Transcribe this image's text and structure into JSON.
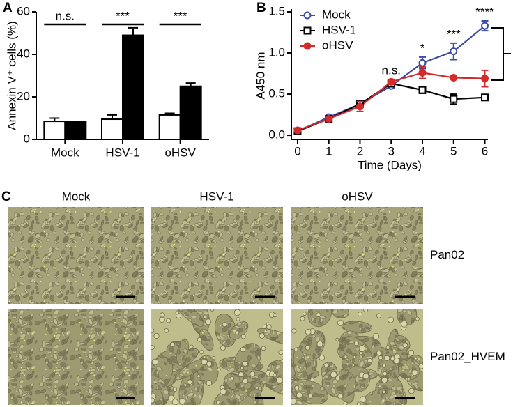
{
  "chart_data": [
    {
      "type": "bar",
      "panel": "A",
      "ylabel": "Annexin V⁺ cells (%)",
      "categories": [
        "Mock",
        "HSV-1",
        "oHSV"
      ],
      "series": [
        {
          "color": "#ffffff",
          "values": [
            8.5,
            9.5,
            11.5
          ],
          "errors": [
            1.5,
            2,
            0.8
          ]
        },
        {
          "color": "#000000",
          "values": [
            8.2,
            49,
            25
          ],
          "errors": [
            0.3,
            3.5,
            1.5
          ]
        }
      ],
      "significance": [
        "n.s.",
        "***",
        "***"
      ],
      "ylim": [
        0,
        60
      ],
      "yticks": [
        0,
        20,
        40,
        60
      ]
    },
    {
      "type": "line",
      "panel": "B",
      "xlabel": "Time (Days)",
      "ylabel": "A450 nm",
      "x": [
        0,
        1,
        2,
        3,
        4,
        5,
        6
      ],
      "series": [
        {
          "name": "Mock",
          "color": "#3b4ba5",
          "marker": "open-circle",
          "values": [
            0.05,
            0.22,
            0.38,
            0.6,
            0.88,
            1.02,
            1.33
          ],
          "errors": [
            0.02,
            0.02,
            0.03,
            0.03,
            0.07,
            0.1,
            0.06
          ]
        },
        {
          "name": "HSV-1",
          "color": "#000000",
          "marker": "open-square",
          "values": [
            0.05,
            0.2,
            0.38,
            0.63,
            0.55,
            0.44,
            0.46
          ],
          "errors": [
            0.02,
            0.02,
            0.04,
            0.04,
            0.04,
            0.06,
            0.03
          ]
        },
        {
          "name": "oHSV",
          "color": "#d42a2a",
          "marker": "filled-circle",
          "values": [
            0.06,
            0.2,
            0.35,
            0.65,
            0.76,
            0.7,
            0.69
          ],
          "errors": [
            0.02,
            0.02,
            0.06,
            0.03,
            0.07,
            0.02,
            0.1
          ]
        }
      ],
      "annotations": [
        {
          "x": 3,
          "text": "n.s."
        },
        {
          "x": 4,
          "text": "*"
        },
        {
          "x": 5,
          "text": "***"
        },
        {
          "x": 6,
          "text": "****"
        }
      ],
      "legend": "upper left",
      "xlim": [
        -0.2,
        6.1
      ],
      "xticks": [
        0,
        1,
        2,
        3,
        4,
        5,
        6
      ],
      "ylim": [
        -0.05,
        1.5
      ],
      "yticks": [
        {
          "value": 0,
          "label": "0.0"
        },
        0.5,
        {
          "value": 1,
          "label": "1.0"
        },
        1.5
      ]
    }
  ],
  "panel_c": {
    "label": "C",
    "columns": [
      "Mock",
      "HSV-1",
      "oHSV"
    ],
    "rows": [
      "Pan02",
      "Pan02_HVEM"
    ]
  }
}
